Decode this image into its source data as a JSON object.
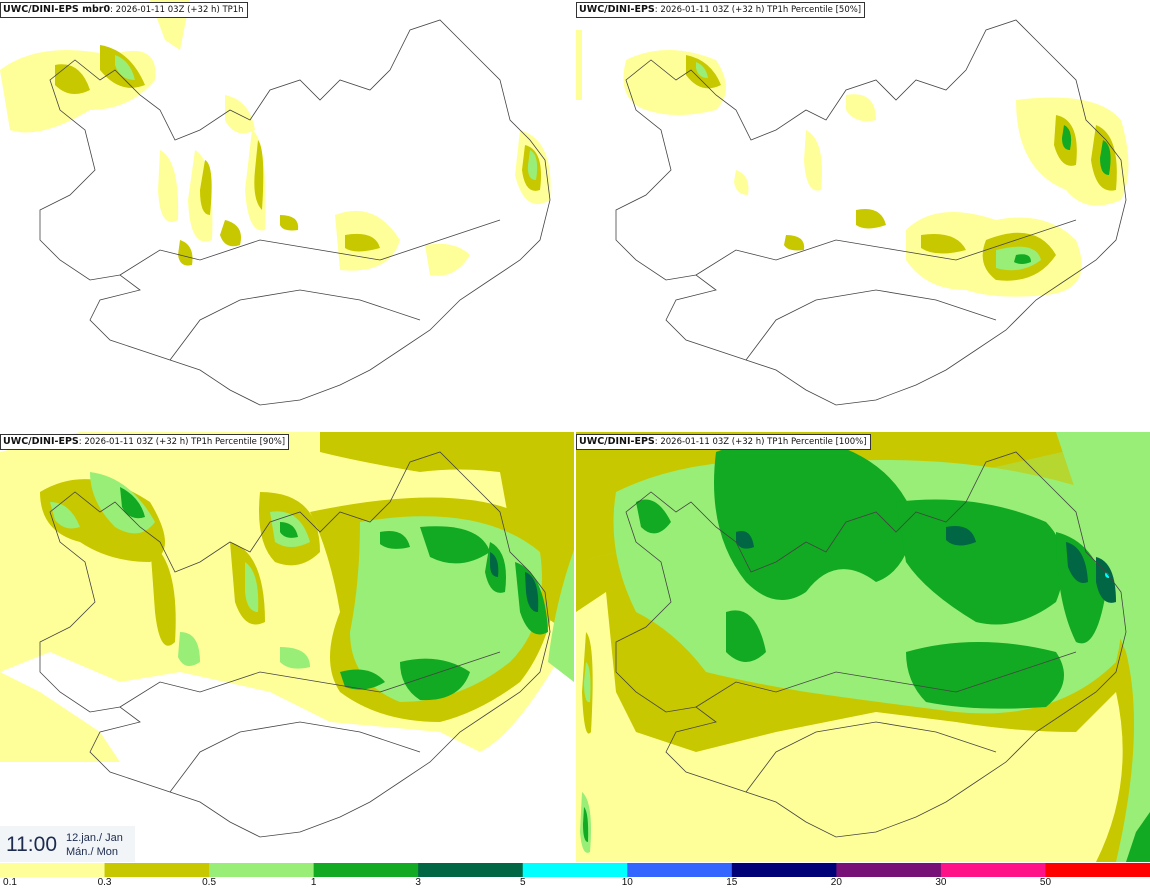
{
  "panels": [
    {
      "model": "UWC/DINI-EPS mbr0",
      "info": ": 2026-01-11 03Z (+32 h) TP1h"
    },
    {
      "model": "UWC/DINI-EPS",
      "info": ": 2026-01-11 03Z (+32 h) TP1h Percentile [50%]"
    },
    {
      "model": "UWC/DINI-EPS",
      "info": ": 2026-01-11 03Z (+32 h) TP1h Percentile [90%]"
    },
    {
      "model": "UWC/DINI-EPS",
      "info": ": 2026-01-11 03Z (+32 h) TP1h Percentile [100%]"
    }
  ],
  "valid_time": {
    "clock": "11:00",
    "date_line1": "12.jan./ Jan",
    "date_line2": "Mán./ Mon"
  },
  "legend": {
    "labels": [
      "0.1",
      "0.3",
      "0.5",
      "1",
      "3",
      "5",
      "10",
      "15",
      "20",
      "30",
      "50"
    ],
    "colors": [
      "#ffff99",
      "#c8c800",
      "#99ee77",
      "#11aa22",
      "#006644",
      "#00ffff",
      "#3366ff",
      "#000077",
      "#771177",
      "#ff1188",
      "#ff0000"
    ]
  }
}
